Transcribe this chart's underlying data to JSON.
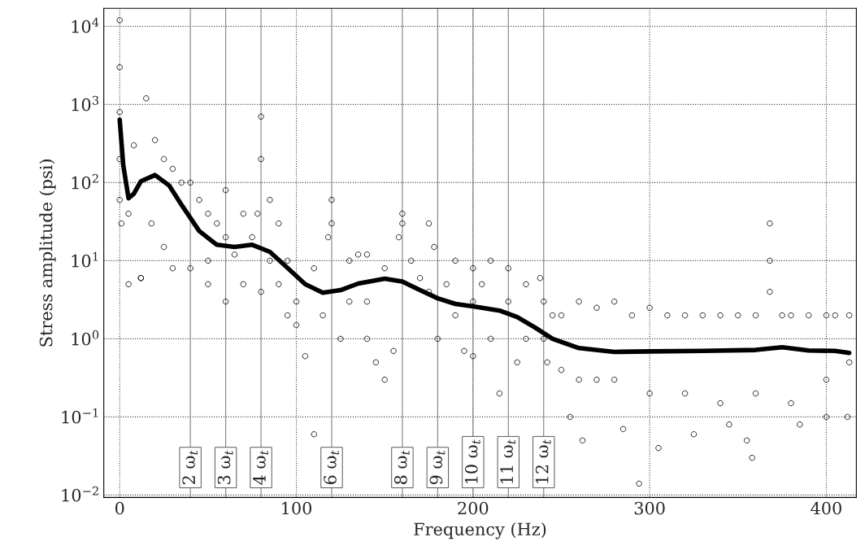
{
  "chart_data": {
    "type": "scatter",
    "xlabel": "Frequency (Hz)",
    "ylabel": "Stress amplitude (psi)",
    "log": "y",
    "grid": true,
    "xlim": [
      -9,
      417
    ],
    "ylim": [
      0.0093,
      17000
    ],
    "xticks": [
      0,
      100,
      200,
      300,
      400
    ],
    "yticks": [
      {
        "value": 0.01,
        "label": "10$^{−2}$"
      },
      {
        "value": 0.1,
        "label": "10$^{−1}$"
      },
      {
        "value": 1,
        "label": "10$^{0}$"
      },
      {
        "value": 10,
        "label": "10$^{1}$"
      },
      {
        "value": 100,
        "label": "10$^{2}$"
      },
      {
        "value": 1000,
        "label": "10$^{3}$"
      },
      {
        "value": 10000,
        "label": "10$^{4}$"
      }
    ],
    "ref_lines": [
      {
        "axis": "x",
        "value": 40,
        "label": "2 ω$_{t}$",
        "color": "#808080"
      },
      {
        "axis": "x",
        "value": 60,
        "label": "3 ω$_{t}$",
        "color": "#808080"
      },
      {
        "axis": "x",
        "value": 80,
        "label": "4 ω$_{t}$",
        "color": "#808080"
      },
      {
        "axis": "x",
        "value": 120,
        "label": "6 ω$_{t}$",
        "color": "#808080"
      },
      {
        "axis": "x",
        "value": 160,
        "label": "8 ω$_{t}$",
        "color": "#808080"
      },
      {
        "axis": "x",
        "value": 180,
        "label": "9 ω$_{t}$",
        "color": "#808080"
      },
      {
        "axis": "x",
        "value": 200,
        "label": "10 ω$_{t}$",
        "color": "#808080"
      },
      {
        "axis": "x",
        "value": 220,
        "label": "11 ω$_{t}$",
        "color": "#808080"
      },
      {
        "axis": "x",
        "value": 240,
        "label": "12 ω$_{t}$",
        "color": "#808080"
      }
    ],
    "series": [
      {
        "color": "#000000",
        "marker": "circle",
        "x": [
          0,
          0,
          0,
          0,
          0,
          1,
          5,
          5,
          8,
          12,
          15,
          20,
          25,
          30,
          18,
          25,
          30,
          12,
          35,
          40,
          40,
          45,
          50,
          50,
          50,
          55,
          60,
          60,
          60,
          65,
          70,
          70,
          75,
          78,
          80,
          80,
          80,
          85,
          85,
          90,
          90,
          95,
          95,
          100,
          100,
          105,
          110,
          110,
          115,
          118,
          120,
          120,
          125,
          130,
          130,
          135,
          140,
          140,
          140,
          145,
          150,
          150,
          155,
          158,
          160,
          160,
          165,
          170,
          175,
          175,
          178,
          180,
          185,
          190,
          190,
          195,
          200,
          200,
          200,
          205,
          210,
          210,
          215,
          220,
          220,
          225,
          230,
          230,
          238,
          240,
          240,
          242,
          245,
          250,
          250,
          255,
          260,
          260,
          262,
          270,
          270,
          280,
          280,
          285,
          290,
          294,
          300,
          300,
          305,
          310,
          320,
          320,
          325,
          330,
          340,
          340,
          345,
          350,
          355,
          358,
          360,
          360,
          368,
          368,
          368,
          375,
          380,
          380,
          385,
          390,
          400,
          400,
          400,
          405,
          413,
          413,
          412
        ],
        "values": [
          12000,
          3000,
          800,
          200,
          60,
          30,
          5,
          40,
          300,
          6,
          1200,
          350,
          200,
          150,
          30,
          15,
          8,
          6,
          100,
          100,
          8,
          60,
          40,
          10,
          5,
          30,
          80,
          20,
          3,
          12,
          40,
          5,
          20,
          40,
          700,
          200,
          4,
          60,
          10,
          30,
          5,
          10,
          2,
          3,
          1.5,
          0.6,
          8,
          0.06,
          2,
          20,
          60,
          30,
          1,
          10,
          3,
          12,
          12,
          3,
          1,
          0.5,
          8,
          0.3,
          0.7,
          20,
          40,
          30,
          10,
          6,
          30,
          4,
          15,
          1,
          5,
          10,
          2,
          0.7,
          8,
          3,
          0.6,
          5,
          10,
          1,
          0.2,
          8,
          3,
          0.5,
          5,
          1,
          6,
          3,
          1,
          0.5,
          2,
          2,
          0.4,
          0.1,
          3,
          0.3,
          0.05,
          2.5,
          0.3,
          3,
          0.3,
          0.07,
          2,
          0.014,
          2.5,
          0.2,
          0.04,
          2,
          2,
          0.2,
          0.06,
          2,
          2,
          0.15,
          0.08,
          2,
          0.05,
          0.03,
          2,
          0.2,
          30,
          10,
          4,
          2,
          2,
          0.15,
          0.08,
          2,
          2,
          0.3,
          0.1,
          2,
          2,
          0.5,
          0.1
        ]
      },
      {
        "type": "line",
        "color": "#000000",
        "x": [
          0,
          2,
          5,
          8,
          12,
          20,
          28,
          35,
          45,
          55,
          65,
          75,
          85,
          95,
          105,
          115,
          125,
          135,
          150,
          160,
          170,
          180,
          190,
          200,
          215,
          225,
          235,
          245,
          260,
          280,
          300,
          330,
          360,
          375,
          390,
          405,
          413
        ],
        "values": [
          640,
          168,
          63,
          72,
          104,
          125,
          92,
          52,
          24,
          16,
          15,
          16,
          13,
          8.1,
          5,
          3.9,
          4.2,
          5.1,
          5.9,
          5.4,
          4.2,
          3.3,
          2.8,
          2.6,
          2.3,
          1.9,
          1.4,
          1.0,
          0.76,
          0.68,
          0.69,
          0.7,
          0.72,
          0.78,
          0.71,
          0.7,
          0.66
        ]
      }
    ]
  }
}
